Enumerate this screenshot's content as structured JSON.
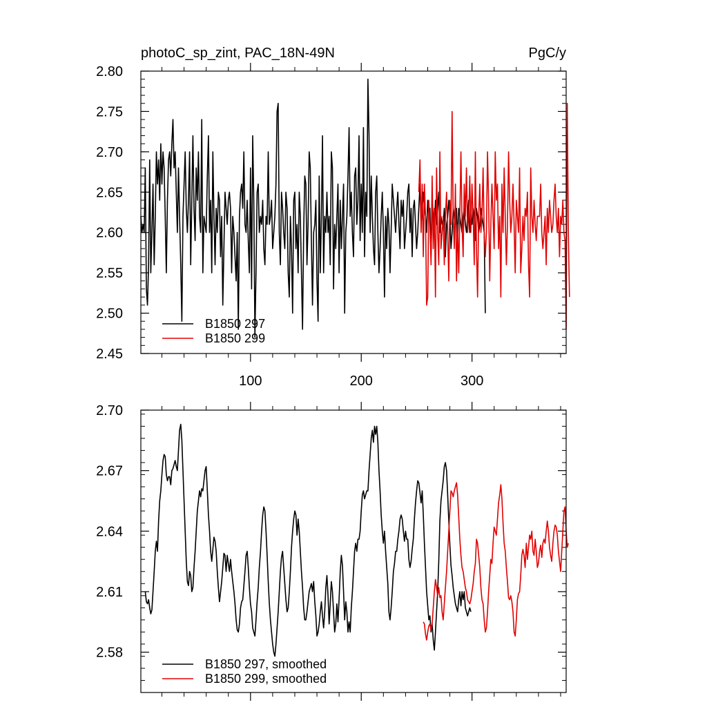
{
  "chart_data": [
    {
      "id": "top",
      "type": "line",
      "title_left": "photoC_sp_zint, PAC_18N-49N",
      "title_right": "PgC/y",
      "xlim": [
        1,
        385
      ],
      "ylim": [
        2.45,
        2.8
      ],
      "x_ticks": [
        100,
        200,
        300
      ],
      "x_tick_labels": [
        "100",
        "200",
        "300"
      ],
      "y_ticks": [
        2.45,
        2.5,
        2.55,
        2.6,
        2.65,
        2.7,
        2.75,
        2.8
      ],
      "y_tick_labels": [
        "2.45",
        "2.50",
        "2.55",
        "2.60",
        "2.65",
        "2.70",
        "2.75",
        "2.80"
      ],
      "legend": [
        "B1850 297",
        "B1850 299"
      ],
      "series": [
        {
          "name": "B1850 297",
          "color": "#000000",
          "x_start": 1,
          "values": [
            2.62,
            2.6,
            2.61,
            2.6,
            2.68,
            2.53,
            2.51,
            2.56,
            2.69,
            2.55,
            2.6,
            2.66,
            2.56,
            2.62,
            2.7,
            2.66,
            2.69,
            2.64,
            2.71,
            2.66,
            2.7,
            2.68,
            2.62,
            2.55,
            2.64,
            2.69,
            2.7,
            2.67,
            2.71,
            2.74,
            2.68,
            2.7,
            2.65,
            2.6,
            2.68,
            2.62,
            2.56,
            2.49,
            2.62,
            2.66,
            2.7,
            2.63,
            2.6,
            2.64,
            2.7,
            2.56,
            2.64,
            2.72,
            2.63,
            2.59,
            2.68,
            2.64,
            2.7,
            2.62,
            2.6,
            2.74,
            2.55,
            2.62,
            2.61,
            2.6,
            2.67,
            2.72,
            2.6,
            2.64,
            2.55,
            2.7,
            2.62,
            2.56,
            2.63,
            2.6,
            2.65,
            2.64,
            2.57,
            2.62,
            2.51,
            2.58,
            2.65,
            2.63,
            2.61,
            2.64,
            2.65,
            2.63,
            2.55,
            2.62,
            2.6,
            2.57,
            2.54,
            2.6,
            2.48,
            2.62,
            2.65,
            2.66,
            2.63,
            2.7,
            2.61,
            2.6,
            2.64,
            2.59,
            2.55,
            2.68,
            2.53,
            2.72,
            2.64,
            2.47,
            2.55,
            2.65,
            2.66,
            2.6,
            2.62,
            2.61,
            2.64,
            2.58,
            2.56,
            2.62,
            2.61,
            2.7,
            2.61,
            2.62,
            2.64,
            2.58,
            2.6,
            2.62,
            2.66,
            2.75,
            2.76,
            2.6,
            2.56,
            2.65,
            2.63,
            2.6,
            2.58,
            2.65,
            2.63,
            2.55,
            2.52,
            2.62,
            2.58,
            2.5,
            2.64,
            2.65,
            2.58,
            2.61,
            2.55,
            2.65,
            2.62,
            2.55,
            2.48,
            2.6,
            2.67,
            2.66,
            2.56,
            2.61,
            2.7,
            2.68,
            2.59,
            2.51,
            2.6,
            2.61,
            2.64,
            2.54,
            2.49,
            2.67,
            2.55,
            2.62,
            2.72,
            2.55,
            2.62,
            2.6,
            2.65,
            2.6,
            2.62,
            2.56,
            2.7,
            2.68,
            2.53,
            2.61,
            2.58,
            2.62,
            2.66,
            2.55,
            2.64,
            2.58,
            2.62,
            2.66,
            2.5,
            2.6,
            2.62,
            2.67,
            2.73,
            2.62,
            2.65,
            2.6,
            2.57,
            2.67,
            2.68,
            2.61,
            2.64,
            2.72,
            2.59,
            2.66,
            2.6,
            2.73,
            2.57,
            2.65,
            2.62,
            2.79,
            2.72,
            2.6,
            2.67,
            2.62,
            2.58,
            2.56,
            2.65,
            2.67,
            2.6,
            2.55,
            2.58,
            2.62,
            2.65,
            2.6,
            2.52,
            2.62,
            2.58,
            2.63,
            2.61,
            2.55,
            2.6,
            2.66,
            2.64,
            2.62,
            2.6,
            2.63,
            2.65,
            2.61,
            2.58,
            2.64,
            2.62,
            2.64,
            2.58,
            2.6,
            2.62,
            2.65,
            2.66,
            2.6,
            2.63,
            2.57,
            2.63,
            2.64,
            2.61,
            2.58,
            2.6,
            2.63,
            2.66,
            2.61,
            2.63,
            2.65,
            2.63,
            2.62,
            2.6,
            2.64,
            2.62,
            2.63,
            2.57,
            2.64,
            2.62,
            2.6,
            2.64,
            2.61,
            2.63,
            2.65,
            2.6,
            2.62,
            2.61,
            2.61,
            2.63,
            2.57,
            2.61,
            2.62,
            2.64,
            2.62,
            2.58,
            2.6,
            2.63,
            2.62,
            2.61,
            2.63,
            2.59,
            2.63,
            2.62,
            2.61,
            2.6,
            2.62,
            2.63,
            2.61,
            2.6,
            2.62,
            2.64,
            2.6,
            2.62,
            2.61,
            2.63,
            2.62,
            2.59,
            2.63,
            2.62,
            2.6,
            2.61,
            2.63,
            2.62,
            2.61,
            2.6,
            2.5
          ]
        },
        {
          "name": "B1850 299",
          "color": "#e00000",
          "x_start": 252,
          "values": [
            2.65,
            2.69,
            2.6,
            2.66,
            2.57,
            2.66,
            2.62,
            2.51,
            2.52,
            2.64,
            2.61,
            2.56,
            2.67,
            2.58,
            2.63,
            2.52,
            2.68,
            2.6,
            2.56,
            2.7,
            2.58,
            2.6,
            2.62,
            2.56,
            2.62,
            2.65,
            2.6,
            2.54,
            2.64,
            2.61,
            2.75,
            2.62,
            2.58,
            2.66,
            2.54,
            2.61,
            2.55,
            2.62,
            2.7,
            2.61,
            2.57,
            2.66,
            2.62,
            2.68,
            2.6,
            2.62,
            2.67,
            2.6,
            2.66,
            2.62,
            2.56,
            2.7,
            2.58,
            2.52,
            2.62,
            2.66,
            2.6,
            2.62,
            2.68,
            2.6,
            2.57,
            2.6,
            2.7,
            2.64,
            2.54,
            2.61,
            2.66,
            2.62,
            2.58,
            2.7,
            2.64,
            2.66,
            2.58,
            2.62,
            2.52,
            2.66,
            2.6,
            2.68,
            2.62,
            2.56,
            2.61,
            2.7,
            2.64,
            2.6,
            2.62,
            2.66,
            2.61,
            2.55,
            2.64,
            2.62,
            2.6,
            2.68,
            2.55,
            2.58,
            2.62,
            2.59,
            2.63,
            2.62,
            2.65,
            2.56,
            2.52,
            2.68,
            2.62,
            2.6,
            2.64,
            2.61,
            2.59,
            2.62,
            2.62,
            2.62,
            2.66,
            2.6,
            2.58,
            2.6,
            2.62,
            2.56,
            2.63,
            2.6,
            2.64,
            2.62,
            2.6,
            2.61,
            2.64,
            2.66,
            2.62,
            2.6,
            2.63,
            2.57,
            2.62,
            2.61,
            2.64,
            2.6,
            2.59,
            2.48,
            2.76,
            2.6,
            2.52
          ]
        }
      ]
    },
    {
      "id": "bottom",
      "type": "line",
      "xlim": [
        1,
        385
      ],
      "ylim": [
        2.56,
        2.7
      ],
      "x_ticks": [
        100,
        200,
        300
      ],
      "y_ticks": [
        2.58,
        2.61,
        2.64,
        2.67,
        2.7
      ],
      "y_tick_labels": [
        "2.58",
        "2.61",
        "2.64",
        "2.67",
        "2.70"
      ],
      "legend": [
        "B1850 297, smoothed",
        "B1850 299, smoothed"
      ],
      "series": [
        {
          "name": "B1850 297, smoothed",
          "color": "#000000",
          "x_start": 5,
          "values": [
            2.61,
            2.605,
            2.604,
            2.606,
            2.602,
            2.599,
            2.601,
            2.61,
            2.62,
            2.63,
            2.635,
            2.63,
            2.645,
            2.655,
            2.66,
            2.668,
            2.675,
            2.678,
            2.677,
            2.668,
            2.665,
            2.667,
            2.667,
            2.663,
            2.67,
            2.671,
            2.673,
            2.675,
            2.672,
            2.67,
            2.68,
            2.69,
            2.693,
            2.685,
            2.67,
            2.655,
            2.64,
            2.625,
            2.615,
            2.613,
            2.62,
            2.618,
            2.61,
            2.612,
            2.622,
            2.63,
            2.64,
            2.65,
            2.655,
            2.66,
            2.657,
            2.661,
            2.66,
            2.665,
            2.67,
            2.672,
            2.66,
            2.648,
            2.64,
            2.63,
            2.625,
            2.631,
            2.637,
            2.635,
            2.63,
            2.62,
            2.612,
            2.605,
            2.61,
            2.615,
            2.622,
            2.629,
            2.628,
            2.62,
            2.628,
            2.624,
            2.62,
            2.626,
            2.62,
            2.615,
            2.61,
            2.604,
            2.596,
            2.591,
            2.59,
            2.594,
            2.602,
            2.605,
            2.606,
            2.613,
            2.62,
            2.628,
            2.63,
            2.622,
            2.612,
            2.604,
            2.6,
            2.592,
            2.59,
            2.588,
            2.596,
            2.605,
            2.612,
            2.622,
            2.63,
            2.64,
            2.648,
            2.652,
            2.65,
            2.64,
            2.628,
            2.615,
            2.604,
            2.596,
            2.59,
            2.584,
            2.58,
            2.578,
            2.584,
            2.592,
            2.6,
            2.61,
            2.62,
            2.627,
            2.63,
            2.622,
            2.614,
            2.606,
            2.6,
            2.602,
            2.61,
            2.62,
            2.632,
            2.64,
            2.646,
            2.65,
            2.648,
            2.638,
            2.646,
            2.64,
            2.63,
            2.62,
            2.612,
            2.602,
            2.596,
            2.596,
            2.6,
            2.605,
            2.61,
            2.612,
            2.614,
            2.61,
            2.615,
            2.605,
            2.598,
            2.588,
            2.59,
            2.594,
            2.6,
            2.605,
            2.598,
            2.592,
            2.6,
            2.612,
            2.618,
            2.608,
            2.594,
            2.604,
            2.615,
            2.61,
            2.6,
            2.59,
            2.594,
            2.604,
            2.595,
            2.606,
            2.62,
            2.628,
            2.623,
            2.61,
            2.596,
            2.605,
            2.6,
            2.59,
            2.595,
            2.59,
            2.602,
            2.61,
            2.62,
            2.63,
            2.634,
            2.63,
            2.636,
            2.636,
            2.64,
            2.65,
            2.658,
            2.66,
            2.656,
            2.658,
            2.66,
            2.66,
            2.67,
            2.678,
            2.686,
            2.69,
            2.684,
            2.692,
            2.688,
            2.692,
            2.684,
            2.67,
            2.66,
            2.648,
            2.64,
            2.634,
            2.64,
            2.63,
            2.622,
            2.614,
            2.6,
            2.596,
            2.602,
            2.61,
            2.62,
            2.624,
            2.63,
            2.63,
            2.636,
            2.64,
            2.646,
            2.648,
            2.646,
            2.64,
            2.635,
            2.64,
            2.636,
            2.636,
            2.626,
            2.622,
            2.625,
            2.631,
            2.636,
            2.646,
            2.654,
            2.66,
            2.665,
            2.664,
            2.659,
            2.654,
            2.66,
            2.648,
            2.634,
            2.622,
            2.61,
            2.603,
            2.596,
            2.598,
            2.59,
            2.594,
            2.586,
            2.581,
            2.59,
            2.6,
            2.61,
            2.625,
            2.645,
            2.655,
            2.66,
            2.665,
            2.672,
            2.674,
            2.67,
            2.658,
            2.645,
            2.633,
            2.623,
            2.618,
            2.612,
            2.608,
            2.604,
            2.602,
            2.6,
            2.606,
            2.61,
            2.603,
            2.61,
            2.606,
            2.61,
            2.602,
            2.6,
            2.598,
            2.6,
            2.602,
            2.6
          ]
        },
        {
          "name": "B1850 299, smoothed",
          "color": "#e00000",
          "x_start": 256,
          "values": [
            2.595,
            2.594,
            2.589,
            2.586,
            2.59,
            2.593,
            2.594,
            2.591,
            2.594,
            2.602,
            2.61,
            2.616,
            2.612,
            2.608,
            2.612,
            2.607,
            2.608,
            2.6,
            2.596,
            2.604,
            2.612,
            2.62,
            2.63,
            2.64,
            2.65,
            2.66,
            2.659,
            2.657,
            2.66,
            2.662,
            2.664,
            2.658,
            2.647,
            2.636,
            2.628,
            2.622,
            2.62,
            2.616,
            2.612,
            2.61,
            2.606,
            2.605,
            2.604,
            2.606,
            2.61,
            2.614,
            2.62,
            2.624,
            2.636,
            2.634,
            2.628,
            2.622,
            2.612,
            2.606,
            2.604,
            2.596,
            2.59,
            2.592,
            2.6,
            2.61,
            2.618,
            2.626,
            2.624,
            2.634,
            2.642,
            2.64,
            2.638,
            2.646,
            2.654,
            2.658,
            2.663,
            2.656,
            2.644,
            2.634,
            2.63,
            2.622,
            2.615,
            2.607,
            2.606,
            2.608,
            2.605,
            2.6,
            2.59,
            2.588,
            2.596,
            2.606,
            2.609,
            2.61,
            2.618,
            2.628,
            2.631,
            2.628,
            2.622,
            2.634,
            2.626,
            2.632,
            2.638,
            2.636,
            2.64,
            2.63,
            2.628,
            2.636,
            2.63,
            2.622,
            2.624,
            2.63,
            2.633,
            2.627,
            2.634,
            2.636,
            2.634,
            2.64,
            2.645,
            2.64,
            2.632,
            2.628,
            2.625,
            2.634,
            2.64,
            2.643,
            2.642,
            2.638,
            2.63,
            2.625,
            2.62,
            2.63,
            2.64,
            2.65,
            2.652,
            2.64,
            2.632,
            2.634
          ]
        }
      ]
    }
  ]
}
